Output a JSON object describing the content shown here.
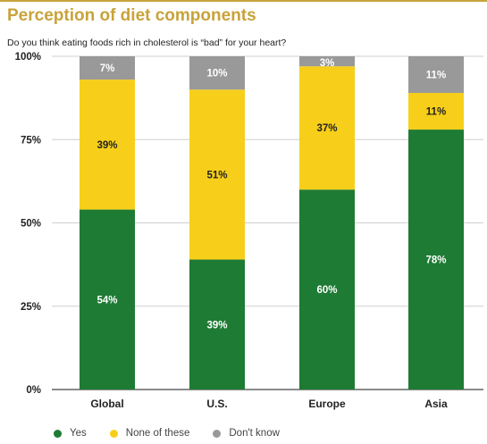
{
  "header": {
    "title": "Perception of diet components",
    "subtitle": "Do you think eating foods rich in cholesterol is “bad” for your heart?"
  },
  "colors": {
    "accent": "#c8a33a",
    "yes": "#1e7b34",
    "none": "#f7cf1a",
    "dont_know": "#999999"
  },
  "chart_data": {
    "type": "bar",
    "stacked": true,
    "percent": true,
    "categories": [
      "Global",
      "U.S.",
      "Europe",
      "Asia"
    ],
    "series": [
      {
        "name": "Yes",
        "values": [
          54,
          39,
          60,
          78
        ],
        "color": "#1e7b34",
        "label_color": "#ffffff"
      },
      {
        "name": "None of these",
        "values": [
          39,
          51,
          37,
          11
        ],
        "color": "#f7cf1a",
        "label_color": "#222222"
      },
      {
        "name": "Don't know",
        "values": [
          7,
          10,
          3,
          11
        ],
        "color": "#999999",
        "label_color": "#ffffff"
      }
    ],
    "ylim": [
      0,
      100
    ],
    "yticks": [
      0,
      25,
      50,
      75,
      100
    ],
    "ytick_labels": [
      "0%",
      "25%",
      "50%",
      "75%",
      "100%"
    ],
    "grid": true,
    "legend": "bottom-left"
  }
}
